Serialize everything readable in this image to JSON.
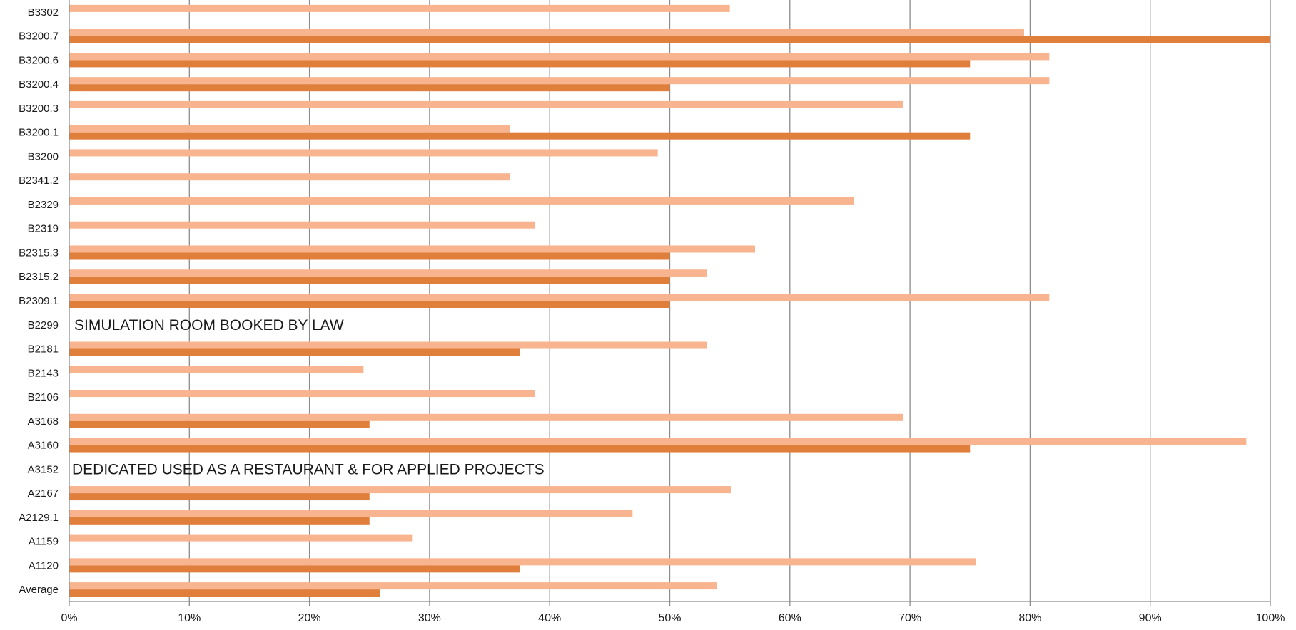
{
  "chart_data": {
    "type": "bar",
    "orientation": "horizontal",
    "categories": [
      "B3302",
      "B3200.7",
      "B3200.6",
      "B3200.4",
      "B3200.3",
      "B3200.1",
      "B3200",
      "B2341.2",
      "B2329",
      "B2319",
      "B2315.3",
      "B2315.2",
      "B2309.1",
      "B2299",
      "B2181",
      "B2143",
      "B2106",
      "A3168",
      "A3160",
      "A3152",
      "A2167",
      "A2129.1",
      "A1159",
      "A1120",
      "Average"
    ],
    "series": [
      {
        "color": "#F8B48E",
        "values": [
          55,
          79.5,
          81.6,
          81.6,
          69.4,
          36.7,
          49,
          36.7,
          65.3,
          38.8,
          57.1,
          53.1,
          81.6,
          null,
          53.1,
          24.5,
          38.8,
          69.4,
          98,
          null,
          55.1,
          46.9,
          28.6,
          75.5,
          53.9
        ]
      },
      {
        "color": "#E07F3B",
        "values": [
          null,
          100,
          75,
          50,
          null,
          75,
          null,
          null,
          null,
          null,
          50,
          50,
          50,
          null,
          37.5,
          null,
          null,
          25,
          75,
          null,
          25,
          25,
          null,
          37.5,
          25.9
        ]
      }
    ],
    "xlim": [
      0,
      100
    ],
    "xticks": [
      "0%",
      "10%",
      "20%",
      "30%",
      "40%",
      "50%",
      "60%",
      "70%",
      "80%",
      "90%",
      "100%"
    ],
    "grid": true,
    "annotations": [
      {
        "category": "B2299",
        "text": "SIMULATION ROOM BOOKED BY LAW"
      },
      {
        "category": "A3152",
        "text": "DEDICATED USED AS A RESTAURANT & FOR APPLIED PROJECTS"
      }
    ]
  }
}
